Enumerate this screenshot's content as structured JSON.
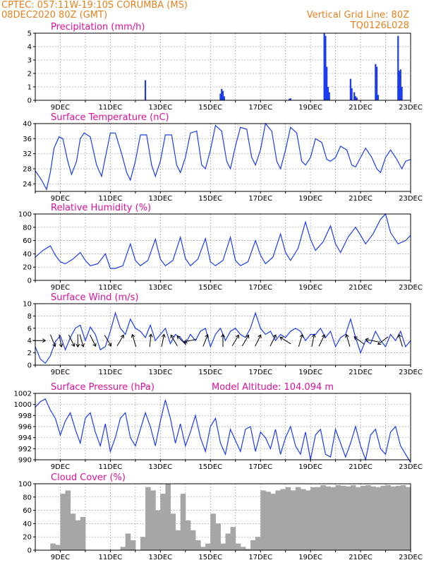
{
  "header": {
    "line1": "CPTEC:  057:11W-19:10S  CORUMBA (MS)",
    "line2": "08DEC2020 80Z (GMT)",
    "grid_note": "Vertical Grid Line: 80Z",
    "run_id": "TQ0126L028"
  },
  "x_axis": {
    "start_day": 8,
    "end_day": 23,
    "ticks": [
      "9DEC",
      "11DEC",
      "13DEC",
      "15DEC",
      "17DEC",
      "19DEC",
      "21DEC",
      "23DEC"
    ]
  },
  "chart_data": [
    {
      "id": "precip",
      "type": "bar",
      "title": "Precipitation  (mm/h)",
      "ylim": [
        0,
        5
      ],
      "yticks": [
        0,
        1,
        2,
        3,
        4,
        5
      ],
      "color": "#1c3cf0",
      "x_unit": "day of month (Dec 2020)",
      "x": [
        12.4,
        15.4,
        15.45,
        15.5,
        15.55,
        18.15,
        18.2,
        19.55,
        19.6,
        19.65,
        19.7,
        19.75,
        20.6,
        20.65,
        20.75,
        20.8,
        20.85,
        21.6,
        21.65,
        21.7,
        22.5,
        22.55,
        22.6,
        22.65
      ],
      "values": [
        1.5,
        0.5,
        0.85,
        0.7,
        0.3,
        0.1,
        0.15,
        5.0,
        4.8,
        2.5,
        1.0,
        0.6,
        1.6,
        0.9,
        0.6,
        0.3,
        0.2,
        2.7,
        2.5,
        0.4,
        4.8,
        2.2,
        2.3,
        1.0
      ]
    },
    {
      "id": "temp",
      "type": "line",
      "title": "Surface Temperature  (nC)",
      "ylim": [
        22,
        40
      ],
      "yticks": [
        24,
        28,
        32,
        36,
        40
      ],
      "color": "#1c3cf0",
      "x_unit": "day of month (Dec 2020)",
      "x": [
        8.0,
        8.25,
        8.45,
        8.6,
        8.75,
        8.95,
        9.1,
        9.3,
        9.45,
        9.65,
        9.8,
        9.95,
        10.2,
        10.45,
        10.65,
        10.8,
        11.0,
        11.2,
        11.45,
        11.65,
        11.8,
        12.0,
        12.2,
        12.45,
        12.65,
        12.8,
        13.0,
        13.2,
        13.45,
        13.65,
        13.8,
        14.0,
        14.2,
        14.45,
        14.65,
        14.8,
        15.0,
        15.2,
        15.45,
        15.65,
        15.8,
        16.0,
        16.2,
        16.45,
        16.65,
        16.8,
        17.0,
        17.2,
        17.45,
        17.65,
        17.8,
        18.0,
        18.2,
        18.45,
        18.65,
        18.8,
        19.0,
        19.2,
        19.45,
        19.65,
        19.8,
        20.0,
        20.2,
        20.45,
        20.65,
        20.8,
        21.0,
        21.2,
        21.45,
        21.65,
        21.8,
        22.0,
        22.2,
        22.45,
        22.65,
        22.8,
        23.0
      ],
      "values": [
        27.5,
        25,
        22.5,
        27,
        33.5,
        36.5,
        36.0,
        30,
        26.5,
        30,
        36,
        37.5,
        36.5,
        29,
        26,
        31,
        37.5,
        37.5,
        32,
        27,
        25,
        30,
        37,
        37,
        29,
        26,
        30,
        37,
        37,
        29,
        27,
        31,
        37.5,
        38,
        29,
        28,
        33,
        39.5,
        38,
        30,
        28,
        34,
        39,
        38.5,
        31,
        29,
        33,
        40,
        38,
        30,
        28,
        33,
        39,
        37.5,
        30,
        29,
        31,
        36,
        35,
        30.5,
        30,
        31,
        34,
        33,
        29,
        28.5,
        31,
        33.5,
        31,
        28,
        27,
        31,
        33,
        30.5,
        28,
        30,
        30.5
      ]
    },
    {
      "id": "rh",
      "type": "line",
      "title": "Relative Humidity  (%)",
      "ylim": [
        0,
        100
      ],
      "yticks": [
        0,
        20,
        40,
        60,
        80,
        100
      ],
      "color": "#1c3cf0",
      "x_unit": "day of month (Dec 2020)",
      "x": [
        8.0,
        8.3,
        8.6,
        8.8,
        9.0,
        9.2,
        9.5,
        9.8,
        10.0,
        10.2,
        10.5,
        10.8,
        11.0,
        11.2,
        11.5,
        11.8,
        12.0,
        12.2,
        12.5,
        12.8,
        13.0,
        13.2,
        13.5,
        13.8,
        14.0,
        14.2,
        14.5,
        14.8,
        15.0,
        15.2,
        15.5,
        15.8,
        16.0,
        16.2,
        16.5,
        16.8,
        17.0,
        17.2,
        17.5,
        17.8,
        18.0,
        18.2,
        18.5,
        18.8,
        19.0,
        19.2,
        19.5,
        19.8,
        20.0,
        20.2,
        20.5,
        20.8,
        21.0,
        21.2,
        21.5,
        21.8,
        22.0,
        22.2,
        22.5,
        22.8,
        23.0
      ],
      "values": [
        35,
        45,
        52,
        38,
        28,
        25,
        32,
        42,
        30,
        22,
        25,
        40,
        18,
        18,
        22,
        55,
        30,
        22,
        30,
        62,
        32,
        22,
        30,
        65,
        33,
        22,
        32,
        63,
        28,
        22,
        30,
        65,
        30,
        22,
        28,
        60,
        38,
        25,
        35,
        70,
        42,
        30,
        48,
        88,
        62,
        45,
        58,
        82,
        55,
        42,
        65,
        80,
        68,
        55,
        70,
        92,
        100,
        72,
        55,
        60,
        68
      ]
    },
    {
      "id": "wind",
      "type": "line",
      "title": "Surface Wind  (m/s)",
      "ylim": [
        0,
        10
      ],
      "yticks": [
        0,
        2,
        4,
        6,
        8,
        10
      ],
      "color": "#1c3cf0",
      "x_unit": "day of month (Dec 2020)",
      "x": [
        8.0,
        8.2,
        8.4,
        8.6,
        8.8,
        9.0,
        9.2,
        9.4,
        9.6,
        9.8,
        10.0,
        10.2,
        10.4,
        10.6,
        10.8,
        11.0,
        11.2,
        11.4,
        11.6,
        11.8,
        12.0,
        12.2,
        12.4,
        12.6,
        12.8,
        13.0,
        13.2,
        13.4,
        13.6,
        13.8,
        14.0,
        14.2,
        14.4,
        14.6,
        14.8,
        15.0,
        15.2,
        15.4,
        15.6,
        15.8,
        16.0,
        16.2,
        16.4,
        16.6,
        16.8,
        17.0,
        17.2,
        17.4,
        17.6,
        17.8,
        18.0,
        18.2,
        18.4,
        18.6,
        18.8,
        19.0,
        19.2,
        19.4,
        19.6,
        19.8,
        20.0,
        20.2,
        20.4,
        20.6,
        20.8,
        21.0,
        21.2,
        21.4,
        21.6,
        21.8,
        22.0,
        22.2,
        22.4,
        22.6,
        22.8,
        23.0
      ],
      "values": [
        3.0,
        1.0,
        0.3,
        1.5,
        3.8,
        4.8,
        2.5,
        4.5,
        6.0,
        6.5,
        4.0,
        6.2,
        5.0,
        2.5,
        3.0,
        5.5,
        8.5,
        6.0,
        5.0,
        7.5,
        6.0,
        5.5,
        4.5,
        6.5,
        4.0,
        5.0,
        6.0,
        3.5,
        5.0,
        4.5,
        3.5,
        5.0,
        4.0,
        5.5,
        6.0,
        3.0,
        5.0,
        6.0,
        4.0,
        5.5,
        6.0,
        5.0,
        4.5,
        6.0,
        8.5,
        6.0,
        5.0,
        5.5,
        4.0,
        5.0,
        4.5,
        5.5,
        6.0,
        5.5,
        4.0,
        5.0,
        5.0,
        6.0,
        4.5,
        5.5,
        3.0,
        4.5,
        5.0,
        7.5,
        4.5,
        2.0,
        4.0,
        3.5,
        5.5,
        4.0,
        3.0,
        5.0,
        4.0,
        5.5,
        3.0,
        4.0
      ],
      "arrows": [
        {
          "x": 8.15,
          "dir": [
            1,
            0
          ]
        },
        {
          "x": 8.7,
          "dir": [
            0.4,
            1
          ]
        },
        {
          "x": 9.0,
          "dir": [
            0.2,
            1
          ]
        },
        {
          "x": 9.45,
          "dir": [
            0.5,
            1
          ]
        },
        {
          "x": 9.7,
          "dir": [
            0,
            1
          ]
        },
        {
          "x": 9.85,
          "dir": [
            0.3,
            1
          ]
        },
        {
          "x": 10.3,
          "dir": [
            0.5,
            1
          ]
        },
        {
          "x": 10.9,
          "dir": [
            0.6,
            1
          ]
        },
        {
          "x": 11.4,
          "dir": [
            0.6,
            -1
          ]
        },
        {
          "x": 11.95,
          "dir": [
            -0.3,
            -1
          ]
        },
        {
          "x": 12.6,
          "dir": [
            0.1,
            -1
          ]
        },
        {
          "x": 13.1,
          "dir": [
            0.2,
            -1
          ]
        },
        {
          "x": 13.55,
          "dir": [
            -0.6,
            -1
          ]
        },
        {
          "x": 13.85,
          "dir": [
            -0.7,
            -0.7
          ]
        },
        {
          "x": 14.2,
          "dir": [
            -1,
            0.2
          ]
        },
        {
          "x": 14.8,
          "dir": [
            0.4,
            -1
          ]
        },
        {
          "x": 15.5,
          "dir": [
            0,
            -1
          ]
        },
        {
          "x": 16.0,
          "dir": [
            0.6,
            -1
          ]
        },
        {
          "x": 16.4,
          "dir": [
            0.6,
            -1
          ]
        },
        {
          "x": 16.9,
          "dir": [
            0.5,
            -1
          ]
        },
        {
          "x": 17.5,
          "dir": [
            0.5,
            -1
          ]
        },
        {
          "x": 18.0,
          "dir": [
            -0.8,
            -0.5
          ]
        },
        {
          "x": 18.6,
          "dir": [
            0.3,
            -1
          ]
        },
        {
          "x": 19.1,
          "dir": [
            0.2,
            -1
          ]
        },
        {
          "x": 19.45,
          "dir": [
            0.5,
            -1
          ]
        },
        {
          "x": 20.5,
          "dir": [
            -0.3,
            -1
          ]
        },
        {
          "x": 20.95,
          "dir": [
            -0.8,
            -0.6
          ]
        },
        {
          "x": 21.45,
          "dir": [
            -1,
            -0.2
          ]
        },
        {
          "x": 21.9,
          "dir": [
            -0.8,
            0.6
          ]
        },
        {
          "x": 22.6,
          "dir": [
            -0.3,
            -1
          ]
        }
      ]
    },
    {
      "id": "pressure",
      "type": "line",
      "title": "Surface Pressure  (hPa)",
      "annotation": "Model Altitude: 104.094  m",
      "ylim": [
        990,
        1002
      ],
      "yticks": [
        990,
        992,
        994,
        996,
        998,
        1000,
        1002
      ],
      "color": "#1c3cf0",
      "x_unit": "day of month (Dec 2020)",
      "x": [
        8.0,
        8.2,
        8.4,
        8.6,
        8.8,
        9.0,
        9.2,
        9.4,
        9.6,
        9.8,
        10.0,
        10.2,
        10.4,
        10.6,
        10.8,
        11.0,
        11.2,
        11.4,
        11.6,
        11.8,
        12.0,
        12.2,
        12.4,
        12.6,
        12.8,
        13.0,
        13.2,
        13.4,
        13.6,
        13.8,
        14.0,
        14.2,
        14.4,
        14.6,
        14.8,
        15.0,
        15.2,
        15.4,
        15.6,
        15.8,
        16.0,
        16.2,
        16.4,
        16.6,
        16.8,
        17.0,
        17.2,
        17.4,
        17.6,
        17.8,
        18.0,
        18.2,
        18.4,
        18.6,
        18.8,
        19.0,
        19.2,
        19.4,
        19.6,
        19.8,
        20.0,
        20.2,
        20.4,
        20.6,
        20.8,
        21.0,
        21.2,
        21.4,
        21.6,
        21.8,
        22.0,
        22.2,
        22.4,
        22.6,
        22.8,
        23.0
      ],
      "values": [
        999.5,
        1000.5,
        1001.0,
        999.0,
        997.5,
        994.5,
        997.0,
        998.5,
        995.5,
        993.0,
        997.5,
        998.5,
        995.0,
        992.5,
        996.5,
        991.5,
        994.0,
        997.5,
        998.5,
        994.0,
        992.5,
        995.5,
        998.5,
        996.0,
        992.5,
        997.0,
        1000.8,
        997.5,
        993.0,
        996.5,
        992.5,
        995.0,
        998.0,
        994.0,
        991.5,
        996.0,
        997.5,
        993.0,
        991.0,
        995.5,
        993.5,
        991.5,
        995.5,
        996.0,
        991.5,
        995.0,
        994.0,
        992.0,
        995.5,
        991.0,
        994.0,
        996.0,
        992.5,
        991.0,
        995.0,
        990.0,
        994.5,
        995.5,
        991.0,
        990.5,
        995.5,
        993.0,
        990.5,
        993.0,
        996.0,
        992.5,
        990.0,
        994.5,
        995.5,
        992.0,
        991.0,
        995.0,
        996.0,
        992.5,
        991.0,
        989.5
      ]
    },
    {
      "id": "cloud",
      "type": "bar",
      "title": "Cloud Cover  (%)",
      "ylim": [
        0,
        100
      ],
      "yticks": [
        0,
        20,
        40,
        60,
        80,
        100
      ],
      "color": "#a6a6a6",
      "x_unit": "day of month (Dec 2020)",
      "x": [
        8.0,
        8.2,
        8.4,
        8.6,
        8.8,
        9.0,
        9.2,
        9.4,
        9.6,
        9.8,
        10.0,
        10.2,
        10.4,
        10.6,
        10.8,
        11.0,
        11.2,
        11.4,
        11.6,
        11.8,
        12.0,
        12.2,
        12.4,
        12.6,
        12.8,
        13.0,
        13.2,
        13.4,
        13.6,
        13.8,
        14.0,
        14.2,
        14.4,
        14.6,
        14.8,
        15.0,
        15.2,
        15.4,
        15.6,
        15.8,
        16.0,
        16.2,
        16.4,
        16.6,
        16.8,
        17.0,
        17.2,
        17.4,
        17.6,
        17.8,
        18.0,
        18.2,
        18.4,
        18.6,
        18.8,
        19.0,
        19.2,
        19.4,
        19.6,
        19.8,
        20.0,
        20.2,
        20.4,
        20.6,
        20.8,
        21.0,
        21.2,
        21.4,
        21.6,
        21.8,
        22.0,
        22.2,
        22.4,
        22.6,
        22.8
      ],
      "values": [
        0,
        0,
        0,
        10,
        8,
        85,
        90,
        55,
        45,
        50,
        0,
        0,
        0,
        0,
        0,
        0,
        0,
        5,
        25,
        15,
        0,
        20,
        95,
        90,
        60,
        85,
        100,
        55,
        30,
        85,
        45,
        30,
        15,
        5,
        10,
        55,
        40,
        10,
        25,
        35,
        10,
        5,
        2,
        15,
        20,
        90,
        88,
        85,
        90,
        92,
        95,
        90,
        95,
        92,
        90,
        95,
        95,
        98,
        96,
        95,
        98,
        97,
        96,
        98,
        95,
        97,
        98,
        96,
        95,
        97,
        98,
        96,
        97,
        98,
        95
      ]
    }
  ]
}
